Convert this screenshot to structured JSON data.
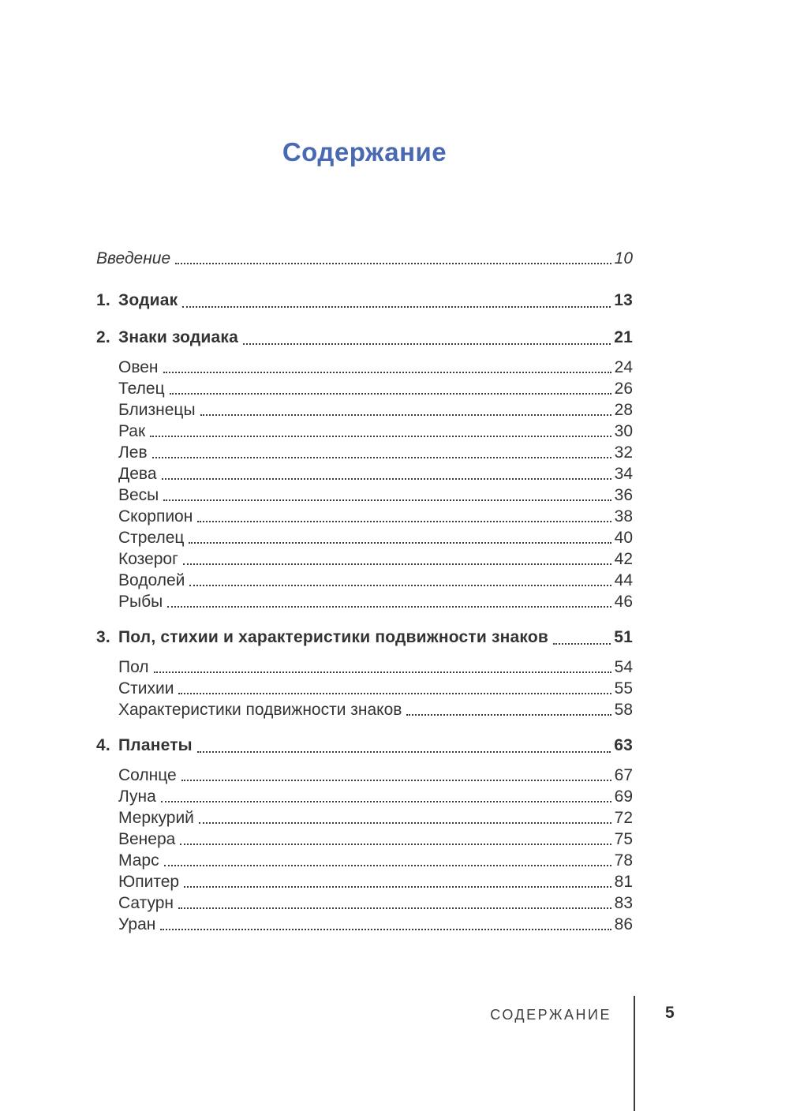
{
  "page": {
    "title": "Содержание",
    "title_color": "#4a69b4",
    "text_color": "#333333"
  },
  "toc": {
    "entries": [
      {
        "type": "intro",
        "label": "Введение",
        "page": "10"
      },
      {
        "type": "section",
        "number": "1.",
        "label": "Зодиак",
        "page": "13"
      },
      {
        "type": "section",
        "number": "2.",
        "label": "Знаки зодиака",
        "page": "21"
      },
      {
        "type": "sub",
        "label": "Овен",
        "page": "24"
      },
      {
        "type": "sub",
        "label": "Телец",
        "page": "26"
      },
      {
        "type": "sub",
        "label": "Близнецы",
        "page": "28"
      },
      {
        "type": "sub",
        "label": "Рак",
        "page": "30"
      },
      {
        "type": "sub",
        "label": "Лев",
        "page": "32"
      },
      {
        "type": "sub",
        "label": "Дева",
        "page": "34"
      },
      {
        "type": "sub",
        "label": "Весы",
        "page": "36"
      },
      {
        "type": "sub",
        "label": "Скорпион",
        "page": "38"
      },
      {
        "type": "sub",
        "label": "Стрелец",
        "page": "40"
      },
      {
        "type": "sub",
        "label": "Козерог",
        "page": "42"
      },
      {
        "type": "sub",
        "label": "Водолей",
        "page": "44"
      },
      {
        "type": "sub",
        "label": "Рыбы",
        "page": "46"
      },
      {
        "type": "section",
        "number": "3.",
        "label": "Пол, стихии и характеристики подвижности знаков",
        "page": "51"
      },
      {
        "type": "sub",
        "label": "Пол",
        "page": "54"
      },
      {
        "type": "sub",
        "label": "Стихии",
        "page": "55"
      },
      {
        "type": "sub",
        "label": "Характеристики подвижности знаков",
        "page": "58"
      },
      {
        "type": "section",
        "number": "4.",
        "label": "Планеты",
        "page": "63"
      },
      {
        "type": "sub",
        "label": "Солнце",
        "page": "67"
      },
      {
        "type": "sub",
        "label": "Луна",
        "page": "69"
      },
      {
        "type": "sub",
        "label": "Меркурий",
        "page": "72"
      },
      {
        "type": "sub",
        "label": "Венера",
        "page": "75"
      },
      {
        "type": "sub",
        "label": "Марс",
        "page": "78"
      },
      {
        "type": "sub",
        "label": "Юпитер",
        "page": "81"
      },
      {
        "type": "sub",
        "label": "Сатурн",
        "page": "83"
      },
      {
        "type": "sub",
        "label": "Уран",
        "page": "86"
      }
    ]
  },
  "footer": {
    "running_title": "СОДЕРЖАНИЕ",
    "page_number": "5"
  }
}
